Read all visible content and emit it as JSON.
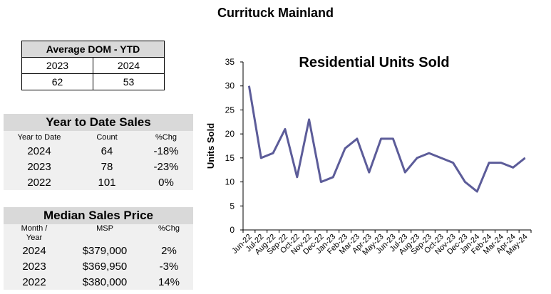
{
  "page": {
    "title": "Currituck Mainland"
  },
  "dom_table": {
    "header": "Average DOM - YTD",
    "years": [
      "2023",
      "2024"
    ],
    "values": [
      "62",
      "53"
    ]
  },
  "ytd_sales": {
    "title": "Year to Date Sales",
    "columns": [
      "Year to Date",
      "Count",
      "%Chg"
    ],
    "rows": [
      {
        "year": "2024",
        "count": "64",
        "chg": "-18%"
      },
      {
        "year": "2023",
        "count": "78",
        "chg": "-23%"
      },
      {
        "year": "2022",
        "count": "101",
        "chg": "0%"
      }
    ]
  },
  "median_price": {
    "title": "Median Sales Price",
    "columns": [
      "Month /",
      "Year",
      "MSP",
      "%Chg"
    ],
    "rows": [
      {
        "year": "2024",
        "msp": "$379,000",
        "chg": "2%"
      },
      {
        "year": "2023",
        "msp": "$369,950",
        "chg": "-3%"
      },
      {
        "year": "2022",
        "msp": "$380,000",
        "chg": "14%"
      }
    ]
  },
  "chart_data": {
    "type": "line",
    "title": "Residential Units Sold",
    "xlabel": "",
    "ylabel": "Units Sold",
    "ylim": [
      0,
      35
    ],
    "yticks": [
      0,
      5,
      10,
      15,
      20,
      25,
      30,
      35
    ],
    "categories": [
      "Jun-22",
      "Jul-22",
      "Aug-22",
      "Sep-22",
      "Oct-22",
      "Nov-22",
      "Dec-22",
      "Jan-23",
      "Feb-23",
      "Mar-23",
      "Apr-23",
      "May-23",
      "Jun-23",
      "Jul-23",
      "Aug-23",
      "Sep-23",
      "Oct-23",
      "Nov-23",
      "Dec-23",
      "Jan-24",
      "Feb-24",
      "Mar-24",
      "Apr-24",
      "May-24"
    ],
    "series": [
      {
        "values": [
          30,
          15,
          16,
          21,
          11,
          23,
          10,
          11,
          17,
          19,
          12,
          19,
          19,
          12,
          15,
          16,
          15,
          14,
          10,
          8,
          14,
          14,
          13,
          15
        ]
      }
    ],
    "grid": false,
    "line_color": "#5c5c99"
  }
}
